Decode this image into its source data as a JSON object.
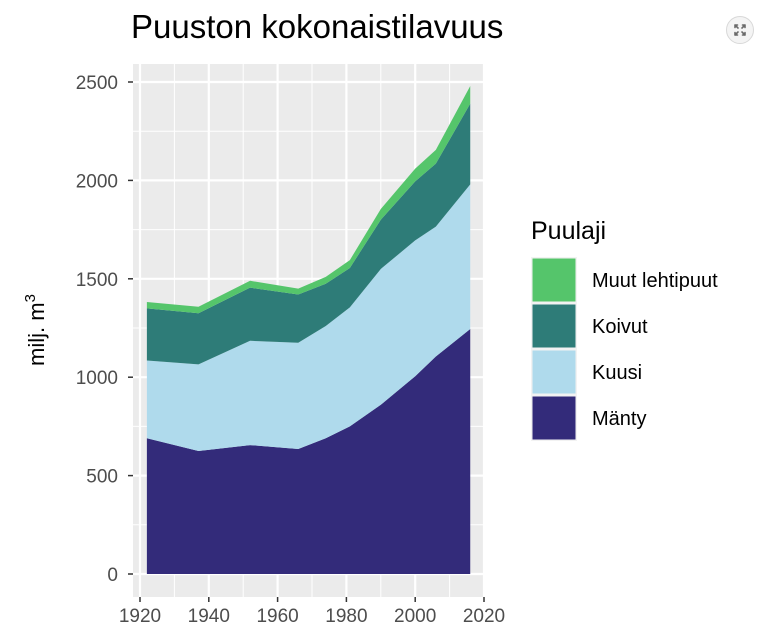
{
  "chart_data": {
    "type": "area",
    "stacked": true,
    "title": "Puuston kokonaistilavuus",
    "ylabel": "milj. m",
    "ylabel_sup": "3",
    "xlabel": "",
    "xlim": [
      1920,
      2020
    ],
    "ylim": [
      0,
      2500
    ],
    "x_ticks": [
      "1920",
      "1940",
      "1960",
      "1980",
      "2000",
      "2020"
    ],
    "y_ticks": [
      "0",
      "500",
      "1000",
      "1500",
      "2000",
      "2500"
    ],
    "x": [
      1922,
      1937,
      1952,
      1966,
      1974,
      1981,
      1990,
      2000,
      2006,
      2016
    ],
    "series": [
      {
        "name": "Mänty",
        "color": "#332b7a",
        "values": [
          690,
          625,
          655,
          635,
          690,
          750,
          860,
          1005,
          1105,
          1245
        ]
      },
      {
        "name": "Kuusi",
        "color": "#afdaec",
        "values": [
          395,
          440,
          530,
          540,
          570,
          605,
          690,
          690,
          660,
          735
        ]
      },
      {
        "name": "Koivut",
        "color": "#2e7c78",
        "values": [
          265,
          260,
          270,
          245,
          215,
          200,
          250,
          300,
          320,
          410
        ]
      },
      {
        "name": "Muut lehtipuut",
        "color": "#55c56b",
        "values": [
          32,
          33,
          35,
          30,
          35,
          40,
          55,
          65,
          70,
          90
        ]
      }
    ],
    "grid": true,
    "legend": {
      "title": "Puulaji",
      "position": "right"
    }
  },
  "toolbar": {
    "expand_icon": "expand-icon"
  }
}
